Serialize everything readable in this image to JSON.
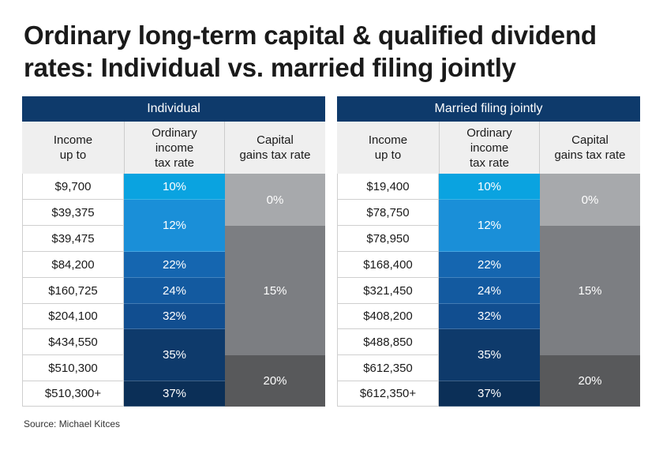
{
  "title": "Ordinary long-term capital & qualified dividend rates: Individual vs. married filing jointly",
  "headers": {
    "income_line1": "Income",
    "income_line2": "up to",
    "ordinary_line1": "Ordinary",
    "ordinary_line2": "income",
    "ordinary_line3": "tax rate",
    "capital_line1": "Capital",
    "capital_line2": "gains tax rate"
  },
  "rates": [
    "10%",
    "12%",
    "22%",
    "24%",
    "32%",
    "35%",
    "37%"
  ],
  "capital_rates": [
    "0%",
    "15%",
    "20%"
  ],
  "individual": {
    "label": "Individual",
    "incomes": [
      "$9,700",
      "$39,375",
      "$39,475",
      "$84,200",
      "$160,725",
      "$204,100",
      "$434,550",
      "$510,300",
      "$510,300+"
    ]
  },
  "married": {
    "label": "Married filing jointly",
    "incomes": [
      "$19,400",
      "$78,750",
      "$78,950",
      "$168,400",
      "$321,450",
      "$408,200",
      "$488,850",
      "$612,350",
      "$612,350+"
    ]
  },
  "colors": {
    "header": "#0e3a6b",
    "rate_10": "#0aa3e0",
    "rate_12": "#1a8fd8",
    "rate_22": "#1566b0",
    "rate_24": "#135aa0",
    "rate_32": "#114e90",
    "rate_35": "#0e3a6b",
    "rate_37": "#0b2f57",
    "cg_0": "#a7a9ac",
    "cg_15": "#7c7e82",
    "cg_20": "#58595b"
  },
  "source": "Source: Michael Kitces"
}
